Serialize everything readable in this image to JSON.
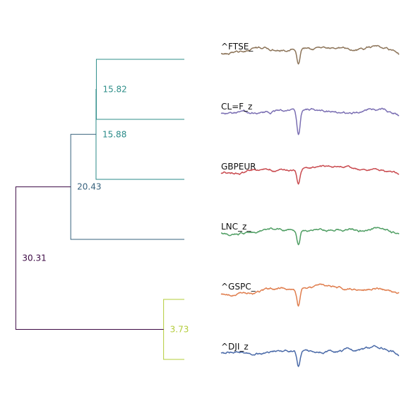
{
  "chart_data": {
    "type": "dendrogram",
    "leaves": [
      {
        "name": "^FTSE_",
        "color": "#8c7459"
      },
      {
        "name": "CL=F_z",
        "color": "#7b6fb3"
      },
      {
        "name": "GBPEUR",
        "color": "#c94a4f"
      },
      {
        "name": "LNC_z_",
        "color": "#4f9e63"
      },
      {
        "name": "^GSPC_",
        "color": "#e07e4e"
      },
      {
        "name": "^DJI_z",
        "color": "#4a6aa8"
      }
    ],
    "merges": [
      {
        "id": "m1",
        "left": 0,
        "right": 1,
        "height": 15.82,
        "label": "15.82",
        "color": "#2f8f8a"
      },
      {
        "id": "m2",
        "left": "m1",
        "right": 2,
        "height": 15.88,
        "label": "15.88",
        "color": "#2a8a88"
      },
      {
        "id": "m3",
        "left": "m2",
        "right": 3,
        "height": 20.43,
        "label": "20.43",
        "color": "#36617c"
      },
      {
        "id": "m4",
        "left": 4,
        "right": 5,
        "height": 3.73,
        "label": "3.73",
        "color": "#b3cc3a"
      },
      {
        "id": "m5",
        "left": "m3",
        "right": "m4",
        "height": 30.31,
        "label": "30.31",
        "color": "#3d0a45"
      }
    ],
    "xlim": [
      0,
      31.5
    ],
    "x_orientation": "reversed",
    "axis_visible": false,
    "series_shape": "time-series sparkline per leaf, sharp dip near the middle"
  }
}
